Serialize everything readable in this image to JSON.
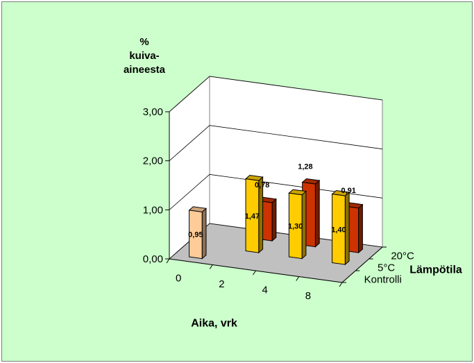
{
  "chart_data": {
    "type": "bar",
    "subtype": "3d-clustered-column",
    "ylabel_lines": [
      "%",
      "kuiva-",
      "aineesta"
    ],
    "xlabel": "Aika, vrk",
    "zlabel": "Lämpötila",
    "categories": [
      "0",
      "2",
      "4",
      "8"
    ],
    "depth_categories": [
      "Kontrolli",
      "5°C",
      "20°C"
    ],
    "yticks": [
      "0,00",
      "1,00",
      "2,00",
      "3,00"
    ],
    "ylim": [
      0,
      3
    ],
    "grid": true,
    "series": [
      {
        "name": "Kontrolli",
        "color": "#ffcc99",
        "values": [
          0.95,
          null,
          null,
          null
        ],
        "labels": [
          "0,95",
          "",
          "",
          ""
        ]
      },
      {
        "name": "5°C",
        "color": "#ffcc00",
        "values": [
          null,
          1.47,
          1.3,
          1.4
        ],
        "labels": [
          "",
          "1,47",
          "1,30",
          "1,40"
        ]
      },
      {
        "name": "20°C",
        "color": "#cc3300",
        "values": [
          null,
          0.78,
          1.28,
          0.91
        ],
        "labels": [
          "",
          "0,78",
          "1,28",
          "0,91"
        ]
      }
    ]
  }
}
